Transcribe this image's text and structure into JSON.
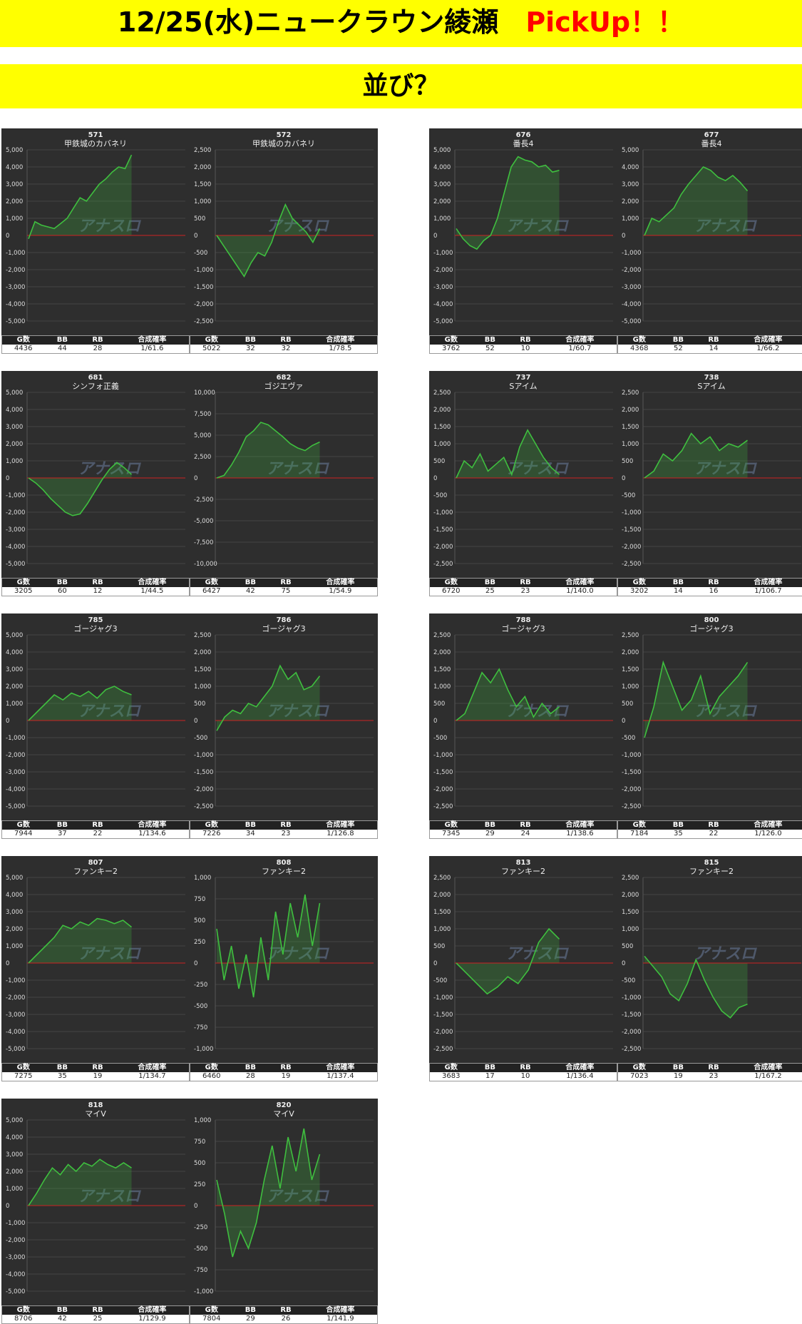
{
  "header": {
    "title_main": "12/25(水)ニュークラウン綾瀬",
    "title_pick": "PickUp！！",
    "subtitle": "並び？"
  },
  "stat_headers": [
    "G数",
    "BB",
    "RB",
    "合成確率"
  ],
  "colors": {
    "banner": "#ffff00",
    "pick": "#ff0000",
    "panel_bg": "#2e2e2e",
    "line": "#3fbf3f",
    "zero_line": "#cc2222"
  },
  "chart_data": [
    {
      "type": "area",
      "unit": "571",
      "name": "甲鉄城のカバネリ",
      "ylim": [
        -5000,
        5000
      ],
      "yticks": [
        "5,000",
        "4,000",
        "3,000",
        "2,000",
        "1,000",
        "0",
        "-1,000",
        "-2,000",
        "-3,000",
        "-4,000",
        "-5,000"
      ],
      "y": [
        -200,
        800,
        600,
        500,
        400,
        700,
        1000,
        1600,
        2200,
        2000,
        2500,
        3000,
        3300,
        3700,
        4000,
        3900,
        4700
      ],
      "stats": [
        "4436",
        "44",
        "28",
        "1/61.6"
      ]
    },
    {
      "type": "area",
      "unit": "572",
      "name": "甲鉄城のカバネリ",
      "ylim": [
        -2500,
        2500
      ],
      "yticks": [
        "2,500",
        "2,000",
        "1,500",
        "1,000",
        "500",
        "0",
        "-500",
        "-1,000",
        "-1,500",
        "-2,000",
        "-2,500"
      ],
      "y": [
        0,
        -300,
        -600,
        -900,
        -1200,
        -800,
        -500,
        -600,
        -200,
        400,
        900,
        500,
        300,
        100,
        -200,
        200
      ],
      "stats": [
        "5022",
        "32",
        "32",
        "1/78.5"
      ]
    },
    {
      "type": "area",
      "unit": "676",
      "name": "番長4",
      "ylim": [
        -5000,
        5000
      ],
      "yticks": [
        "5,000",
        "4,000",
        "3,000",
        "2,000",
        "1,000",
        "0",
        "-1,000",
        "-2,000",
        "-3,000",
        "-4,000",
        "-5,000"
      ],
      "y": [
        400,
        -200,
        -600,
        -800,
        -300,
        0,
        1000,
        2500,
        4000,
        4600,
        4400,
        4300,
        4000,
        4100,
        3700,
        3800
      ],
      "stats": [
        "3762",
        "52",
        "10",
        "1/60.7"
      ]
    },
    {
      "type": "area",
      "unit": "677",
      "name": "番長4",
      "ylim": [
        -5000,
        5000
      ],
      "yticks": [
        "5,000",
        "4,000",
        "3,000",
        "2,000",
        "1,000",
        "0",
        "-1,000",
        "-2,000",
        "-3,000",
        "-4,000",
        "-5,000"
      ],
      "y": [
        0,
        1000,
        800,
        1200,
        1600,
        2400,
        3000,
        3500,
        4000,
        3800,
        3400,
        3200,
        3500,
        3100,
        2600
      ],
      "stats": [
        "4368",
        "52",
        "14",
        "1/66.2"
      ]
    },
    {
      "type": "area",
      "unit": "681",
      "name": "シンフォ正義",
      "ylim": [
        -5000,
        5000
      ],
      "yticks": [
        "5,000",
        "4,000",
        "3,000",
        "2,000",
        "1,000",
        "0",
        "-1,000",
        "-2,000",
        "-3,000",
        "-4,000",
        "-5,000"
      ],
      "y": [
        0,
        -300,
        -700,
        -1200,
        -1600,
        -2000,
        -2200,
        -2100,
        -1500,
        -800,
        -100,
        500,
        900,
        600,
        200
      ],
      "stats": [
        "3205",
        "60",
        "12",
        "1/44.5"
      ]
    },
    {
      "type": "area",
      "unit": "682",
      "name": "ゴジエヴァ",
      "ylim": [
        -10000,
        10000
      ],
      "yticks": [
        "10,000",
        "7,500",
        "5,000",
        "2,500",
        "0",
        "-2,500",
        "-5,000",
        "-7,500",
        "-10,000"
      ],
      "y": [
        0,
        300,
        1500,
        3000,
        4800,
        5500,
        6500,
        6200,
        5500,
        4800,
        4000,
        3500,
        3200,
        3800,
        4200
      ],
      "stats": [
        "6427",
        "42",
        "75",
        "1/54.9"
      ]
    },
    {
      "type": "area",
      "unit": "737",
      "name": "Sアイム",
      "ylim": [
        -2500,
        2500
      ],
      "yticks": [
        "2,500",
        "2,000",
        "1,500",
        "1,000",
        "500",
        "0",
        "-500",
        "-1,000",
        "-1,500",
        "-2,000",
        "-2,500"
      ],
      "y": [
        0,
        500,
        300,
        700,
        200,
        400,
        600,
        100,
        900,
        1400,
        1000,
        600,
        300,
        100
      ],
      "stats": [
        "6720",
        "25",
        "23",
        "1/140.0"
      ]
    },
    {
      "type": "area",
      "unit": "738",
      "name": "Sアイム",
      "ylim": [
        -2500,
        2500
      ],
      "yticks": [
        "2,500",
        "2,000",
        "1,500",
        "1,000",
        "500",
        "0",
        "-500",
        "-1,000",
        "-1,500",
        "-2,000",
        "-2,500"
      ],
      "y": [
        0,
        200,
        700,
        500,
        800,
        1300,
        1000,
        1200,
        800,
        1000,
        900,
        1100
      ],
      "stats": [
        "3202",
        "14",
        "16",
        "1/106.7"
      ]
    },
    {
      "type": "area",
      "unit": "785",
      "name": "ゴージャグ3",
      "ylim": [
        -5000,
        5000
      ],
      "yticks": [
        "5,000",
        "4,000",
        "3,000",
        "2,000",
        "1,000",
        "0",
        "-1,000",
        "-2,000",
        "-3,000",
        "-4,000",
        "-5,000"
      ],
      "y": [
        0,
        500,
        1000,
        1500,
        1200,
        1600,
        1400,
        1700,
        1300,
        1800,
        2000,
        1700,
        1500
      ],
      "stats": [
        "7944",
        "37",
        "22",
        "1/134.6"
      ]
    },
    {
      "type": "area",
      "unit": "786",
      "name": "ゴージャグ3",
      "ylim": [
        -2500,
        2500
      ],
      "yticks": [
        "2,500",
        "2,000",
        "1,500",
        "1,000",
        "500",
        "0",
        "-500",
        "-1,000",
        "-1,500",
        "-2,000",
        "-2,500"
      ],
      "y": [
        -300,
        100,
        300,
        200,
        500,
        400,
        700,
        1000,
        1600,
        1200,
        1400,
        900,
        1000,
        1300
      ],
      "stats": [
        "7226",
        "34",
        "23",
        "1/126.8"
      ]
    },
    {
      "type": "area",
      "unit": "788",
      "name": "ゴージャグ3",
      "ylim": [
        -2500,
        2500
      ],
      "yticks": [
        "2,500",
        "2,000",
        "1,500",
        "1,000",
        "500",
        "0",
        "-500",
        "-1,000",
        "-1,500",
        "-2,000",
        "-2,500"
      ],
      "y": [
        0,
        200,
        800,
        1400,
        1100,
        1500,
        900,
        400,
        700,
        100,
        500,
        200,
        400
      ],
      "stats": [
        "7345",
        "29",
        "24",
        "1/138.6"
      ]
    },
    {
      "type": "area",
      "unit": "800",
      "name": "ゴージャグ3",
      "ylim": [
        -2500,
        2500
      ],
      "yticks": [
        "2,500",
        "2,000",
        "1,500",
        "1,000",
        "500",
        "0",
        "-500",
        "-1,000",
        "-1,500",
        "-2,000",
        "-2,500"
      ],
      "y": [
        -500,
        400,
        1700,
        1000,
        300,
        600,
        1300,
        200,
        700,
        1000,
        1300,
        1700
      ],
      "stats": [
        "7184",
        "35",
        "22",
        "1/126.0"
      ]
    },
    {
      "type": "area",
      "unit": "807",
      "name": "ファンキー2",
      "ylim": [
        -5000,
        5000
      ],
      "yticks": [
        "5,000",
        "4,000",
        "3,000",
        "2,000",
        "1,000",
        "0",
        "-1,000",
        "-2,000",
        "-3,000",
        "-4,000",
        "-5,000"
      ],
      "y": [
        0,
        500,
        1000,
        1500,
        2200,
        2000,
        2400,
        2200,
        2600,
        2500,
        2300,
        2500,
        2100
      ],
      "stats": [
        "7275",
        "35",
        "19",
        "1/134.7"
      ]
    },
    {
      "type": "area",
      "unit": "808",
      "name": "ファンキー2",
      "ylim": [
        -1000,
        1000
      ],
      "yticks": [
        "1,000",
        "750",
        "500",
        "250",
        "0",
        "-250",
        "-500",
        "-750",
        "-1,000"
      ],
      "y": [
        400,
        -200,
        200,
        -300,
        100,
        -400,
        300,
        -200,
        600,
        100,
        700,
        300,
        800,
        200,
        700
      ],
      "stats": [
        "6460",
        "28",
        "19",
        "1/137.4"
      ]
    },
    {
      "type": "area",
      "unit": "813",
      "name": "ファンキー2",
      "ylim": [
        -2500,
        2500
      ],
      "yticks": [
        "2,500",
        "2,000",
        "1,500",
        "1,000",
        "500",
        "0",
        "-500",
        "-1,000",
        "-1,500",
        "-2,000",
        "-2,500"
      ],
      "y": [
        0,
        -300,
        -600,
        -900,
        -700,
        -400,
        -600,
        -200,
        600,
        1000,
        700
      ],
      "stats": [
        "3683",
        "17",
        "10",
        "1/136.4"
      ]
    },
    {
      "type": "area",
      "unit": "815",
      "name": "ファンキー2",
      "ylim": [
        -2500,
        2500
      ],
      "yticks": [
        "2,500",
        "2,000",
        "1,500",
        "1,000",
        "500",
        "0",
        "-500",
        "-1,000",
        "-1,500",
        "-2,000",
        "-2,500"
      ],
      "y": [
        200,
        -100,
        -400,
        -900,
        -1100,
        -600,
        100,
        -500,
        -1000,
        -1400,
        -1600,
        -1300,
        -1200
      ],
      "stats": [
        "7023",
        "19",
        "23",
        "1/167.2"
      ]
    },
    {
      "type": "area",
      "unit": "818",
      "name": "マイV",
      "ylim": [
        -5000,
        5000
      ],
      "yticks": [
        "5,000",
        "4,000",
        "3,000",
        "2,000",
        "1,000",
        "0",
        "-1,000",
        "-2,000",
        "-3,000",
        "-4,000",
        "-5,000"
      ],
      "y": [
        0,
        700,
        1500,
        2200,
        1800,
        2400,
        2000,
        2500,
        2300,
        2700,
        2400,
        2200,
        2500,
        2200
      ],
      "stats": [
        "8706",
        "42",
        "25",
        "1/129.9"
      ]
    },
    {
      "type": "area",
      "unit": "820",
      "name": "マイV",
      "ylim": [
        -1000,
        1000
      ],
      "yticks": [
        "1,000",
        "750",
        "500",
        "250",
        "0",
        "-250",
        "-500",
        "-750",
        "-1,000"
      ],
      "y": [
        300,
        -100,
        -600,
        -300,
        -500,
        -200,
        300,
        700,
        200,
        800,
        400,
        900,
        300,
        600
      ],
      "stats": [
        "7804",
        "29",
        "26",
        "1/141.9"
      ]
    }
  ]
}
